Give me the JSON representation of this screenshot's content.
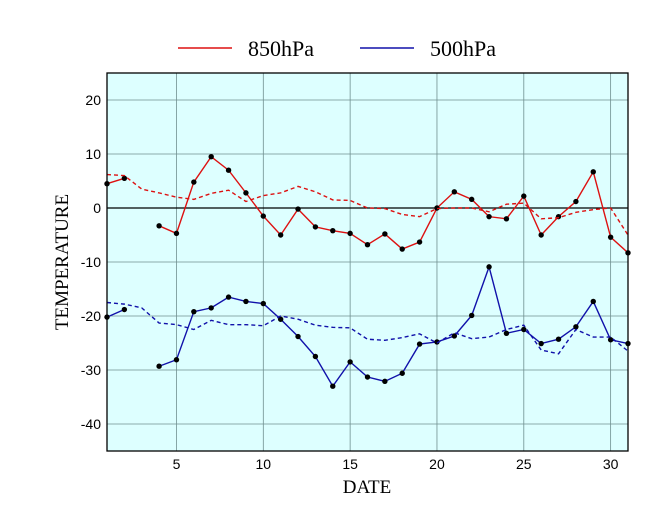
{
  "colors": {
    "plot_bg": "#ddffff",
    "grid": "#6f8f8f",
    "zero_line": "#000000",
    "s850": "#dd1111",
    "s500": "#1111aa"
  },
  "legend": {
    "items": [
      "850hPa",
      "500hPa"
    ]
  },
  "chart_data": {
    "type": "line",
    "title": "",
    "xlabel": "DATE",
    "ylabel": "TEMPERATURE",
    "xlim": [
      1,
      31
    ],
    "ylim": [
      -45,
      25
    ],
    "xticks": [
      5,
      10,
      15,
      20,
      25,
      30
    ],
    "yticks": [
      20,
      10,
      0,
      -10,
      -20,
      -30,
      -40
    ],
    "grid": true,
    "legend_position": "top",
    "series": [
      {
        "name": "850hPa",
        "style": "solid-markers",
        "color": "#dd1111",
        "x": [
          1,
          2,
          3,
          4,
          5,
          6,
          7,
          8,
          9,
          10,
          11,
          12,
          13,
          14,
          15,
          16,
          17,
          18,
          19,
          20,
          21,
          22,
          23,
          24,
          25,
          26,
          27,
          28,
          29,
          30,
          31
        ],
        "values": [
          4.5,
          5.5,
          null,
          -3.3,
          -4.7,
          4.8,
          9.5,
          7.0,
          2.8,
          -1.5,
          -5.0,
          -0.2,
          -3.5,
          -4.2,
          -4.7,
          -6.8,
          -4.8,
          -7.6,
          -6.3,
          0.0,
          3.0,
          1.6,
          -1.6,
          -2.0,
          2.2,
          -5.0,
          -1.6,
          1.2,
          6.7,
          -5.4,
          -8.3
        ]
      },
      {
        "name": "",
        "style": "dashed",
        "color": "#dd1111",
        "x": [
          1,
          2,
          3,
          4,
          5,
          6,
          7,
          8,
          9,
          10,
          11,
          12,
          13,
          14,
          15,
          16,
          17,
          18,
          19,
          20,
          21,
          22,
          23,
          24,
          25,
          26,
          27,
          28,
          29,
          30,
          31
        ],
        "values": [
          6.2,
          6.0,
          3.5,
          2.8,
          2.0,
          1.6,
          2.7,
          3.3,
          1.2,
          2.3,
          2.8,
          4.0,
          3.0,
          1.5,
          1.4,
          0.0,
          -0.1,
          -1.2,
          -1.6,
          -0.1,
          0.0,
          0.0,
          -0.7,
          0.7,
          0.9,
          -2.0,
          -1.8,
          -0.8,
          -0.3,
          0.0,
          -5.0
        ]
      },
      {
        "name": "500hPa",
        "style": "solid-markers",
        "color": "#1111aa",
        "x": [
          1,
          2,
          3,
          4,
          5,
          6,
          7,
          8,
          9,
          10,
          11,
          12,
          13,
          14,
          15,
          16,
          17,
          18,
          19,
          20,
          21,
          22,
          23,
          24,
          25,
          26,
          27,
          28,
          29,
          30,
          31
        ],
        "values": [
          -20.2,
          -18.8,
          null,
          -29.3,
          -28.1,
          -19.2,
          -18.5,
          -16.5,
          -17.3,
          -17.7,
          -20.6,
          -23.8,
          -27.5,
          -33.0,
          -28.5,
          -31.3,
          -32.1,
          -30.6,
          -25.2,
          -24.8,
          -23.7,
          -19.9,
          -10.9,
          -23.2,
          -22.5,
          -25.1,
          -24.3,
          -22.0,
          -17.3,
          -24.4,
          -25.1
        ]
      },
      {
        "name": "",
        "style": "dashed",
        "color": "#1111aa",
        "x": [
          1,
          2,
          3,
          4,
          5,
          6,
          7,
          8,
          9,
          10,
          11,
          12,
          13,
          14,
          15,
          16,
          17,
          18,
          19,
          20,
          21,
          22,
          23,
          24,
          25,
          26,
          27,
          28,
          29,
          30,
          31
        ],
        "values": [
          -17.5,
          -17.8,
          -18.5,
          -21.3,
          -21.6,
          -22.5,
          -20.8,
          -21.6,
          -21.6,
          -21.8,
          -20.0,
          -20.6,
          -21.7,
          -22.1,
          -22.2,
          -24.3,
          -24.5,
          -24.0,
          -23.3,
          -25.0,
          -23.1,
          -24.2,
          -23.9,
          -22.5,
          -21.7,
          -26.3,
          -27.0,
          -22.5,
          -23.9,
          -23.9,
          -26.5
        ]
      }
    ]
  }
}
